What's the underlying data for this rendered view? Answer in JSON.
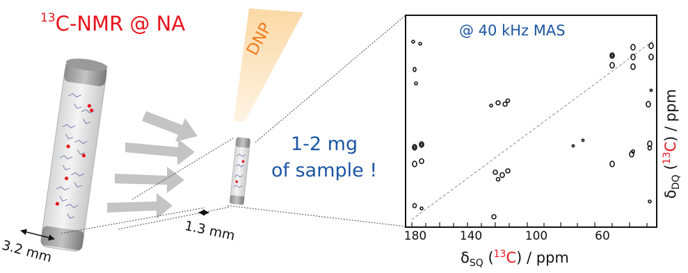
{
  "title": {
    "sup": "13",
    "text": "C-NMR @ NA"
  },
  "dnp_label": "DNP",
  "sample_note": {
    "line1": "1-2 mg",
    "line2": "of sample !"
  },
  "rotors": {
    "large_diameter": "3.2 mm",
    "small_diameter": "1.3 mm"
  },
  "spectrum": {
    "condition": "@ 40 kHz MAS",
    "x_axis": {
      "prefix": "δ",
      "sub": "SQ",
      "open": " (",
      "isotope_sup": "13",
      "isotope": "C",
      "close": ") / ppm",
      "ticks": [
        "180",
        "140",
        "100",
        "60"
      ]
    },
    "y_axis": {
      "prefix": "δ",
      "sub": "DQ",
      "open": " (",
      "isotope_sup": "13",
      "isotope": "C",
      "close": ") / ppm"
    }
  },
  "colors": {
    "title": "#e8141c",
    "accent_blue": "#1a55a3",
    "dnp_orange": "#ee7d22",
    "isotope_red": "#e8141c"
  }
}
